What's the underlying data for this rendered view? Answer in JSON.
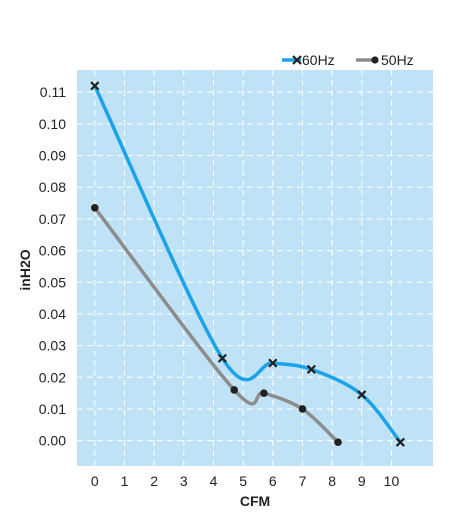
{
  "chart_data": {
    "type": "line",
    "xlabel": "CFM",
    "ylabel": "inH2O",
    "xlim": [
      -0.6,
      11.4
    ],
    "ylim": [
      -0.008,
      0.117
    ],
    "x_ticks": [
      "0",
      "1",
      "2",
      "3",
      "4",
      "5",
      "6",
      "7",
      "8",
      "9",
      "10"
    ],
    "y_ticks": [
      "0.00",
      "0.01",
      "0.02",
      "0.03",
      "0.04",
      "0.05",
      "0.06",
      "0.07",
      "0.08",
      "0.09",
      "0.10",
      "0.11"
    ],
    "y_tick_values": [
      0,
      0.01,
      0.02,
      0.03,
      0.04,
      0.05,
      0.06,
      0.07,
      0.08,
      0.09,
      0.1,
      0.11
    ],
    "grid": true,
    "legend": "top-right",
    "background_color": "#bfe2f6",
    "series": [
      {
        "name": "60Hz",
        "color": "#1aa3e8",
        "marker": "x",
        "x": [
          0,
          4.3,
          6.0,
          7.3,
          9.0,
          10.3
        ],
        "y": [
          0.112,
          0.026,
          0.0245,
          0.0225,
          0.0145,
          -0.0005
        ]
      },
      {
        "name": "50Hz",
        "color": "#8c8c8c",
        "marker": "dot",
        "x": [
          0,
          4.7,
          5.7,
          7.0,
          8.2
        ],
        "y": [
          0.0735,
          0.016,
          0.015,
          0.01,
          -0.0005
        ]
      }
    ]
  }
}
